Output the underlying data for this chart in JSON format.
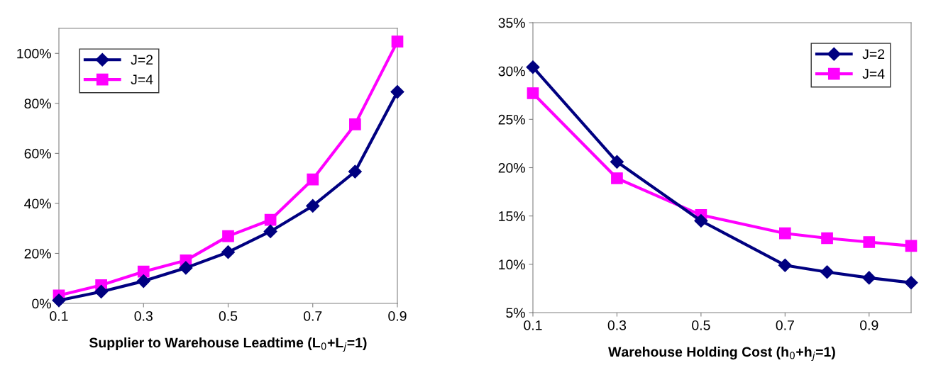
{
  "chart_data": [
    {
      "type": "line",
      "xlabel": "Supplier to Warehouse Leadtime (L$_{0}$+L$_{j}$=1)",
      "x": [
        0.1,
        0.2,
        0.3,
        0.4,
        0.5,
        0.6,
        0.7,
        0.8,
        0.9
      ],
      "series": [
        {
          "name": "J=2",
          "color": "#000080",
          "marker": "diamond",
          "values": [
            1.2,
            4.7,
            8.9,
            14.2,
            20.5,
            28.8,
            39.0,
            52.7,
            84.6
          ]
        },
        {
          "name": "J=4",
          "color": "#ff00ff",
          "marker": "square",
          "values": [
            3.2,
            7.3,
            12.7,
            17.2,
            26.9,
            33.4,
            49.6,
            71.6,
            104.7
          ]
        }
      ],
      "xlim": [
        0.1,
        0.9
      ],
      "xticks": [
        0.1,
        0.3,
        0.5,
        0.7,
        0.9
      ],
      "ylim": [
        0,
        110
      ],
      "yticks": [
        {
          "value": 0,
          "label": "0%"
        },
        {
          "value": 20,
          "label": "20%"
        },
        {
          "value": 40,
          "label": "40%"
        },
        {
          "value": 60,
          "label": "60%"
        },
        {
          "value": 80,
          "label": "80%"
        },
        {
          "value": 100,
          "label": "100%"
        }
      ],
      "grid": false,
      "legend": "top left"
    },
    {
      "type": "line",
      "xlabel": "Warehouse Holding Cost (h$_{0}$+h$_{j}$=1)",
      "x": [
        0.1,
        0.3,
        0.5,
        0.7,
        0.8,
        0.9,
        1.0
      ],
      "series": [
        {
          "name": "J=2",
          "color": "#000080",
          "marker": "diamond",
          "values": [
            30.4,
            20.6,
            14.5,
            9.9,
            9.2,
            8.6,
            8.1
          ]
        },
        {
          "name": "J=4",
          "color": "#ff00ff",
          "marker": "square",
          "values": [
            27.7,
            18.9,
            15.1,
            13.2,
            12.7,
            12.3,
            11.9
          ]
        }
      ],
      "xlim": [
        0.1,
        1.0
      ],
      "xticks": [
        0.1,
        0.3,
        0.5,
        0.7,
        0.9
      ],
      "ylim": [
        5,
        35
      ],
      "yticks": [
        {
          "value": 5,
          "label": "5%"
        },
        {
          "value": 10,
          "label": "10%"
        },
        {
          "value": 15,
          "label": "15%"
        },
        {
          "value": 20,
          "label": "20%"
        },
        {
          "value": 25,
          "label": "25%"
        },
        {
          "value": 30,
          "label": "30%"
        },
        {
          "value": 35,
          "label": "35%"
        }
      ],
      "grid": false,
      "legend": "top right"
    }
  ]
}
